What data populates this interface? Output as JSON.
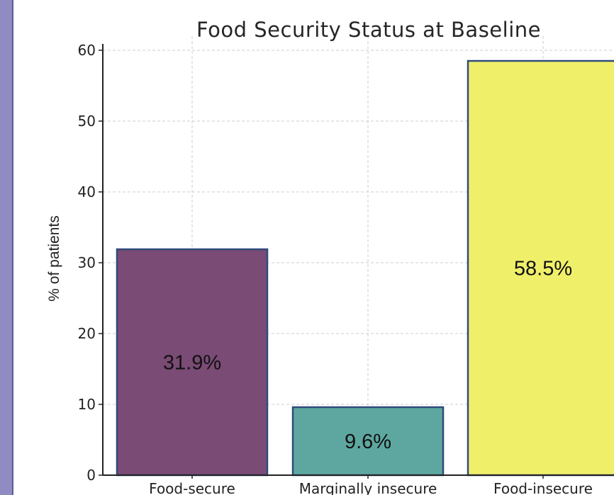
{
  "chart_data": {
    "type": "bar",
    "title": "Food Security Status at Baseline",
    "xlabel": "",
    "ylabel": "% of patients",
    "categories": [
      "Food-secure",
      "Marginally insecure",
      "Food-insecure"
    ],
    "values": [
      31.9,
      9.6,
      58.5
    ],
    "data_labels": [
      "31.9%",
      "9.6%",
      "58.5%"
    ],
    "bar_colors": [
      "#7a4b75",
      "#5ea7a0",
      "#f0ef6a"
    ],
    "bar_edge_color": "#2f4b7c",
    "ylim": [
      0,
      62
    ],
    "yticks": [
      0,
      10,
      20,
      30,
      40,
      50,
      60
    ],
    "grid": true
  },
  "colors": {
    "left_band": "#908bc1",
    "grid": "#cccccc"
  }
}
